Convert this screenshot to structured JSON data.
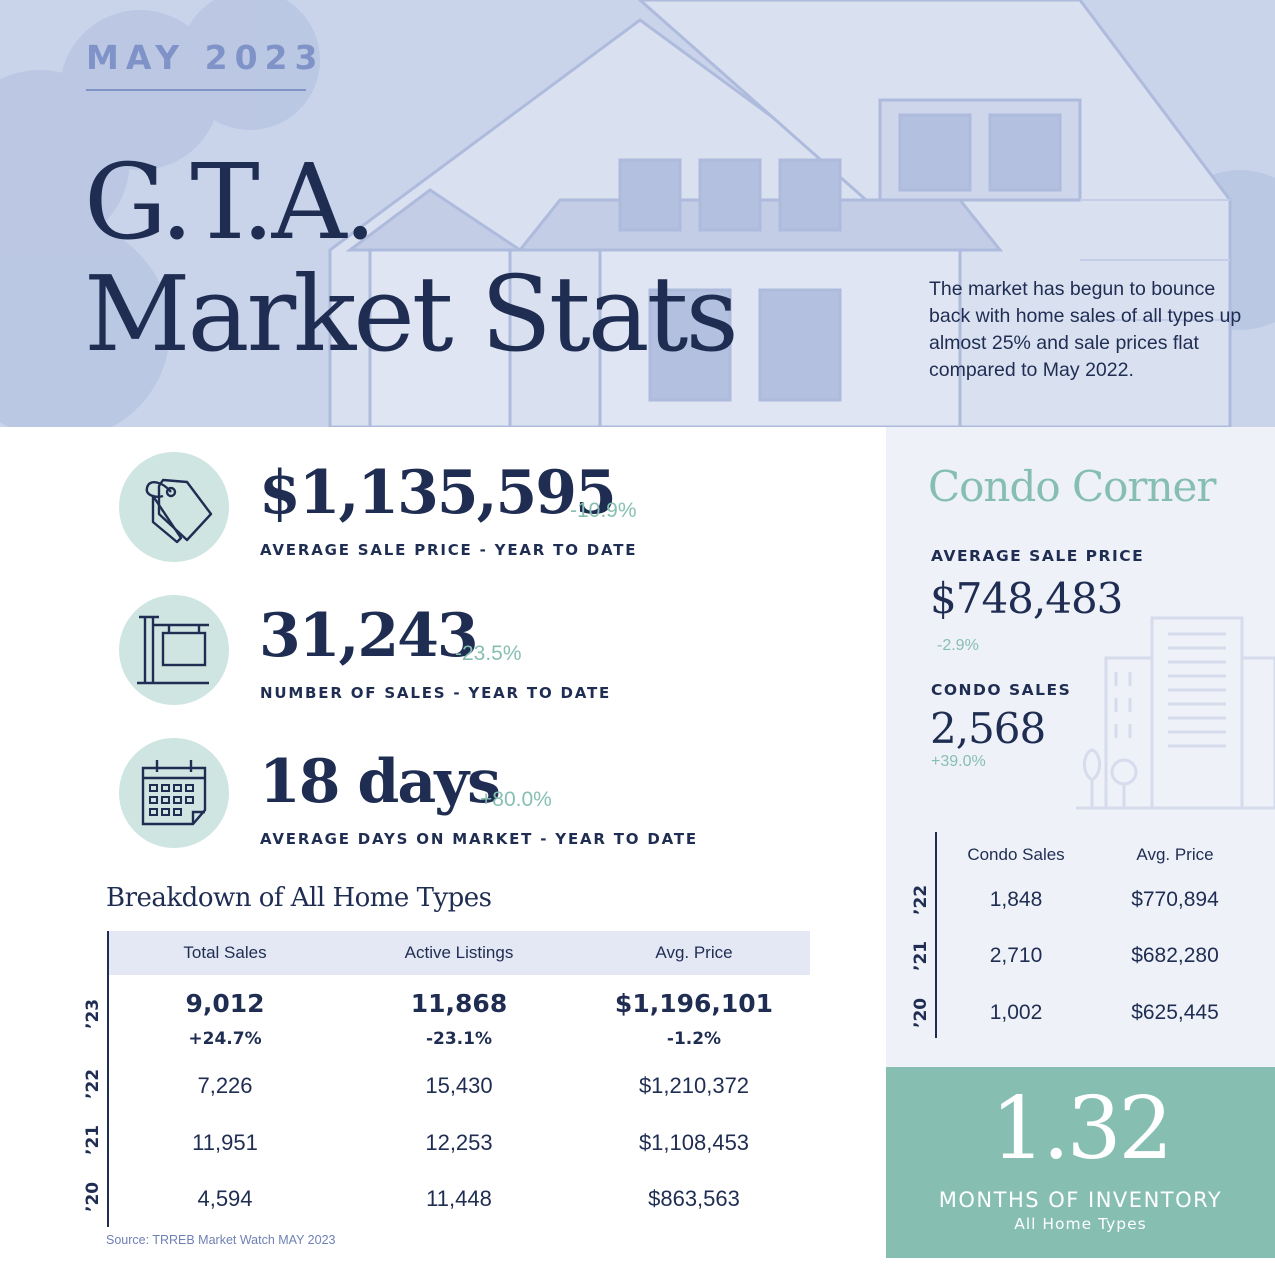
{
  "header": {
    "month": "MAY 2023",
    "title_line1": "G.T.A.",
    "title_line2": "Market Stats",
    "intro": "The market has begun to bounce back with home sales of all types up almost 25% and sale prices flat compared to May 2022."
  },
  "stats": [
    {
      "icon": "price-tag-icon",
      "value": "$1,135,595",
      "change": "-10.9%",
      "label": "AVERAGE SALE PRICE - YEAR TO DATE"
    },
    {
      "icon": "for-sale-sign-icon",
      "value": "31,243",
      "change": "-23.5%",
      "label": "NUMBER OF SALES - YEAR TO DATE"
    },
    {
      "icon": "calendar-icon",
      "value": "18 days",
      "change": "+80.0%",
      "label": "AVERAGE DAYS ON MARKET - YEAR TO DATE"
    }
  ],
  "breakdown": {
    "title": "Breakdown of All Home Types",
    "headers": [
      "Total Sales",
      "Active Listings",
      "Avg. Price"
    ],
    "rows": [
      {
        "year": "’23",
        "values": [
          "9,012",
          "11,868",
          "$1,196,101"
        ],
        "changes": [
          "+24.7%",
          "-23.1%",
          "-1.2%"
        ]
      },
      {
        "year": "’22",
        "values": [
          "7,226",
          "15,430",
          "$1,210,372"
        ]
      },
      {
        "year": "’21",
        "values": [
          "11,951",
          "12,253",
          "$1,108,453"
        ]
      },
      {
        "year": "’20",
        "values": [
          "4,594",
          "11,448",
          "$863,563"
        ]
      }
    ],
    "source": "Source: TRREB Market Watch MAY 2023"
  },
  "condo": {
    "title": "Condo Corner",
    "avg_price_label": "AVERAGE SALE PRICE",
    "avg_price_value": "$748,483",
    "avg_price_change": "-2.9%",
    "sales_label": "CONDO SALES",
    "sales_value": "2,568",
    "sales_change": "+39.0%",
    "table_headers": [
      "Condo Sales",
      "Avg. Price"
    ],
    "rows": [
      {
        "year": "’22",
        "sales": "1,848",
        "price": "$770,894"
      },
      {
        "year": "’21",
        "sales": "2,710",
        "price": "$682,280"
      },
      {
        "year": "’20",
        "sales": "1,002",
        "price": "$625,445"
      }
    ]
  },
  "inventory": {
    "value": "1.32",
    "label": "MONTHS OF INVENTORY",
    "sublabel": "All Home Types"
  },
  "colors": {
    "navy": "#1f2d52",
    "teal": "#86bfb2",
    "light_teal": "#cfe5e1",
    "hero_blue": "#c9d3ea",
    "month_blue": "#7f93c8"
  }
}
